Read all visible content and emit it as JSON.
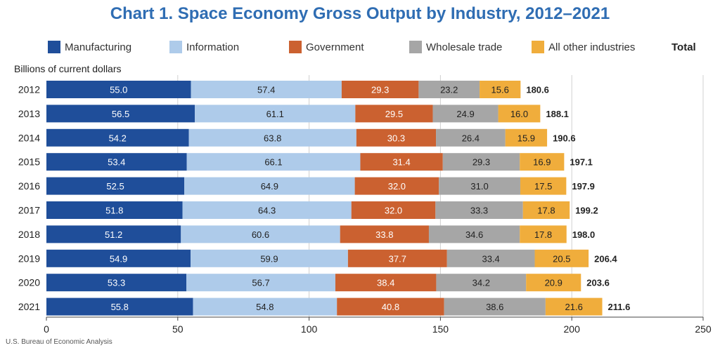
{
  "chart_data": {
    "type": "bar",
    "orientation": "horizontal",
    "stacked": true,
    "title": "Chart 1. Space Economy Gross Output by Industry, 2012–2021",
    "unit_label": "Billions of current dollars",
    "xlabel": "",
    "ylabel": "",
    "xlim": [
      0,
      250
    ],
    "xticks": [
      0,
      50,
      100,
      150,
      200,
      250
    ],
    "grid": true,
    "legend_position": "top",
    "total_label": "Total",
    "categories": [
      "2012",
      "2013",
      "2014",
      "2015",
      "2016",
      "2017",
      "2018",
      "2019",
      "2020",
      "2021"
    ],
    "series": [
      {
        "name": "Manufacturing",
        "color": "#1f4e9a",
        "label_color": "#ffffff",
        "values": [
          55.0,
          56.5,
          54.2,
          53.4,
          52.5,
          51.8,
          51.2,
          54.9,
          53.3,
          55.8
        ]
      },
      {
        "name": "Information",
        "color": "#aecbea",
        "label_color": "#222222",
        "values": [
          57.4,
          61.1,
          63.8,
          66.1,
          64.9,
          64.3,
          60.6,
          59.9,
          56.7,
          54.8
        ]
      },
      {
        "name": "Government",
        "color": "#cb6130",
        "label_color": "#ffffff",
        "values": [
          29.3,
          29.5,
          30.3,
          31.4,
          32.0,
          32.0,
          33.8,
          37.7,
          38.4,
          40.8
        ]
      },
      {
        "name": "Wholesale trade",
        "color": "#a6a6a6",
        "label_color": "#222222",
        "values": [
          23.2,
          24.9,
          26.4,
          29.3,
          31.0,
          33.3,
          34.6,
          33.4,
          34.2,
          38.6
        ]
      },
      {
        "name": "All other industries",
        "color": "#f0ad3c",
        "label_color": "#222222",
        "values": [
          15.6,
          16.0,
          15.9,
          16.9,
          17.5,
          17.8,
          17.8,
          20.5,
          20.9,
          21.6
        ]
      }
    ],
    "totals": [
      180.6,
      188.1,
      190.6,
      197.1,
      197.9,
      199.2,
      198.0,
      206.4,
      203.6,
      211.6
    ],
    "source": "U.S. Bureau of Economic Analysis"
  }
}
